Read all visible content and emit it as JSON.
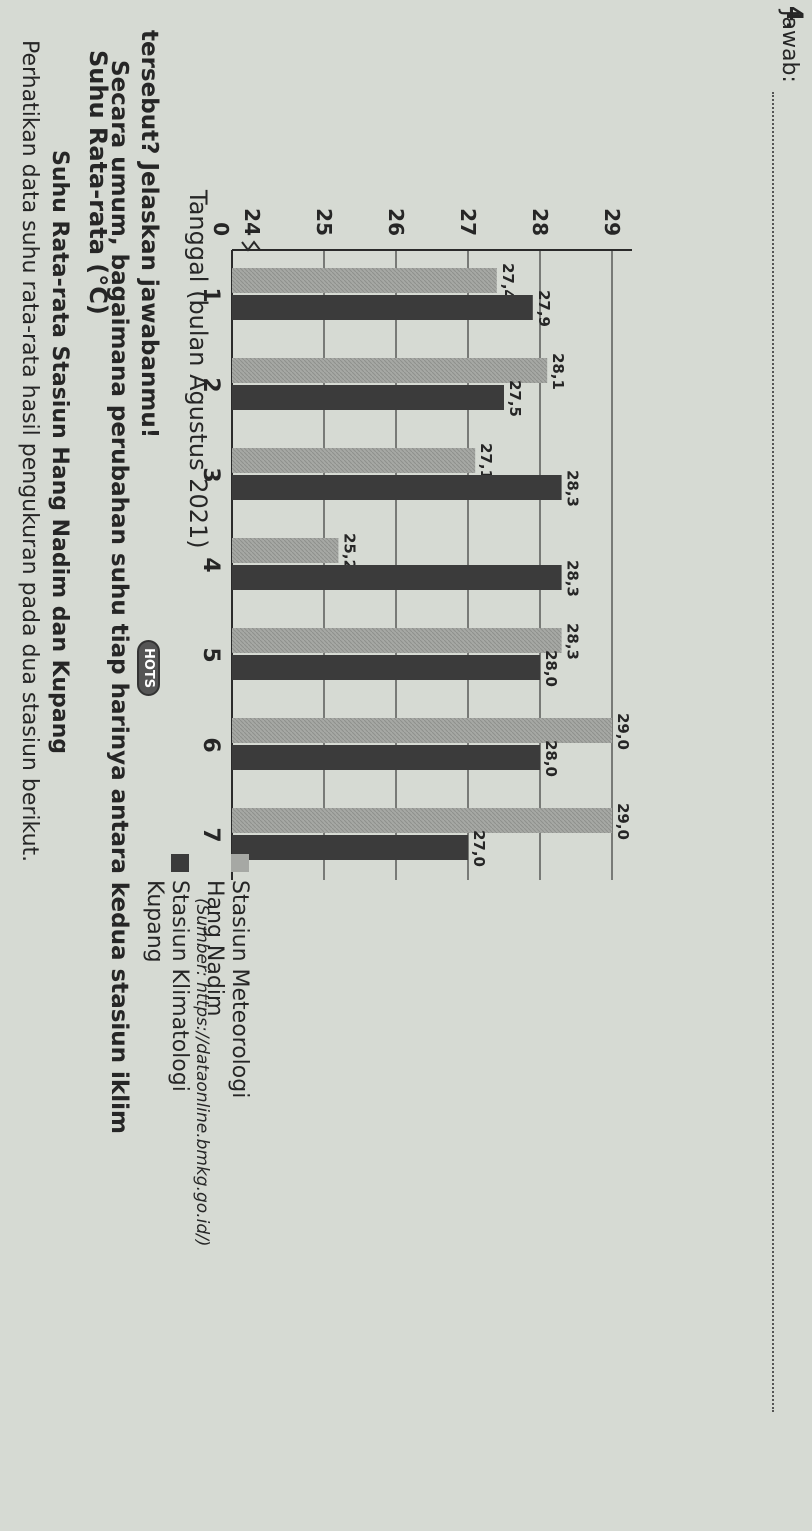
{
  "question": {
    "number": "4.",
    "intro": "Perhatikan data suhu rata-rata hasil pengukuran pada dua stasiun berikut.",
    "prompt_line1": "Secara umum, bagaimana perubahan suhu tiap harinya antara kedua stasiun iklim",
    "prompt_line2": "tersebut? Jelaskan jawabanmu!",
    "badge": "HOTS",
    "answer_label": "Jawab:"
  },
  "chart_data": {
    "type": "bar",
    "title": "Suhu Rata-rata Stasiun Hang Nadim dan Kupang",
    "ylabel": "Suhu Rata-rata (°C)",
    "xlabel": "Tanggal (bulan Agustus 2021)",
    "source": "(Sumber: https://dataonline.bmkg.go.id/)",
    "categories": [
      "1",
      "2",
      "3",
      "4",
      "5",
      "6",
      "7"
    ],
    "yticks": [
      "0",
      "24",
      "25",
      "26",
      "27",
      "28",
      "29"
    ],
    "ylim": [
      24,
      29
    ],
    "axis_break": true,
    "grid": true,
    "legend_position": "right",
    "series": [
      {
        "name_line1": "Stasiun Meteorologi",
        "name_line2": "Hang Nadim",
        "color": "#a6a8a4",
        "values": [
          27.4,
          28.1,
          27.1,
          25.2,
          28.3,
          29.0,
          29.0
        ],
        "labels": [
          "27,4",
          "28,1",
          "27,1",
          "25,2",
          "28,3",
          "29,0",
          "29,0"
        ]
      },
      {
        "name_line1": "Stasiun Klimatologi",
        "name_line2": "Kupang",
        "color": "#3b3b3b",
        "values": [
          27.9,
          27.5,
          28.3,
          28.3,
          28.0,
          28.0,
          27.0
        ],
        "labels": [
          "27,9",
          "27,5",
          "28,3",
          "28,3",
          "28,0",
          "28,0",
          "27,0"
        ]
      }
    ]
  }
}
